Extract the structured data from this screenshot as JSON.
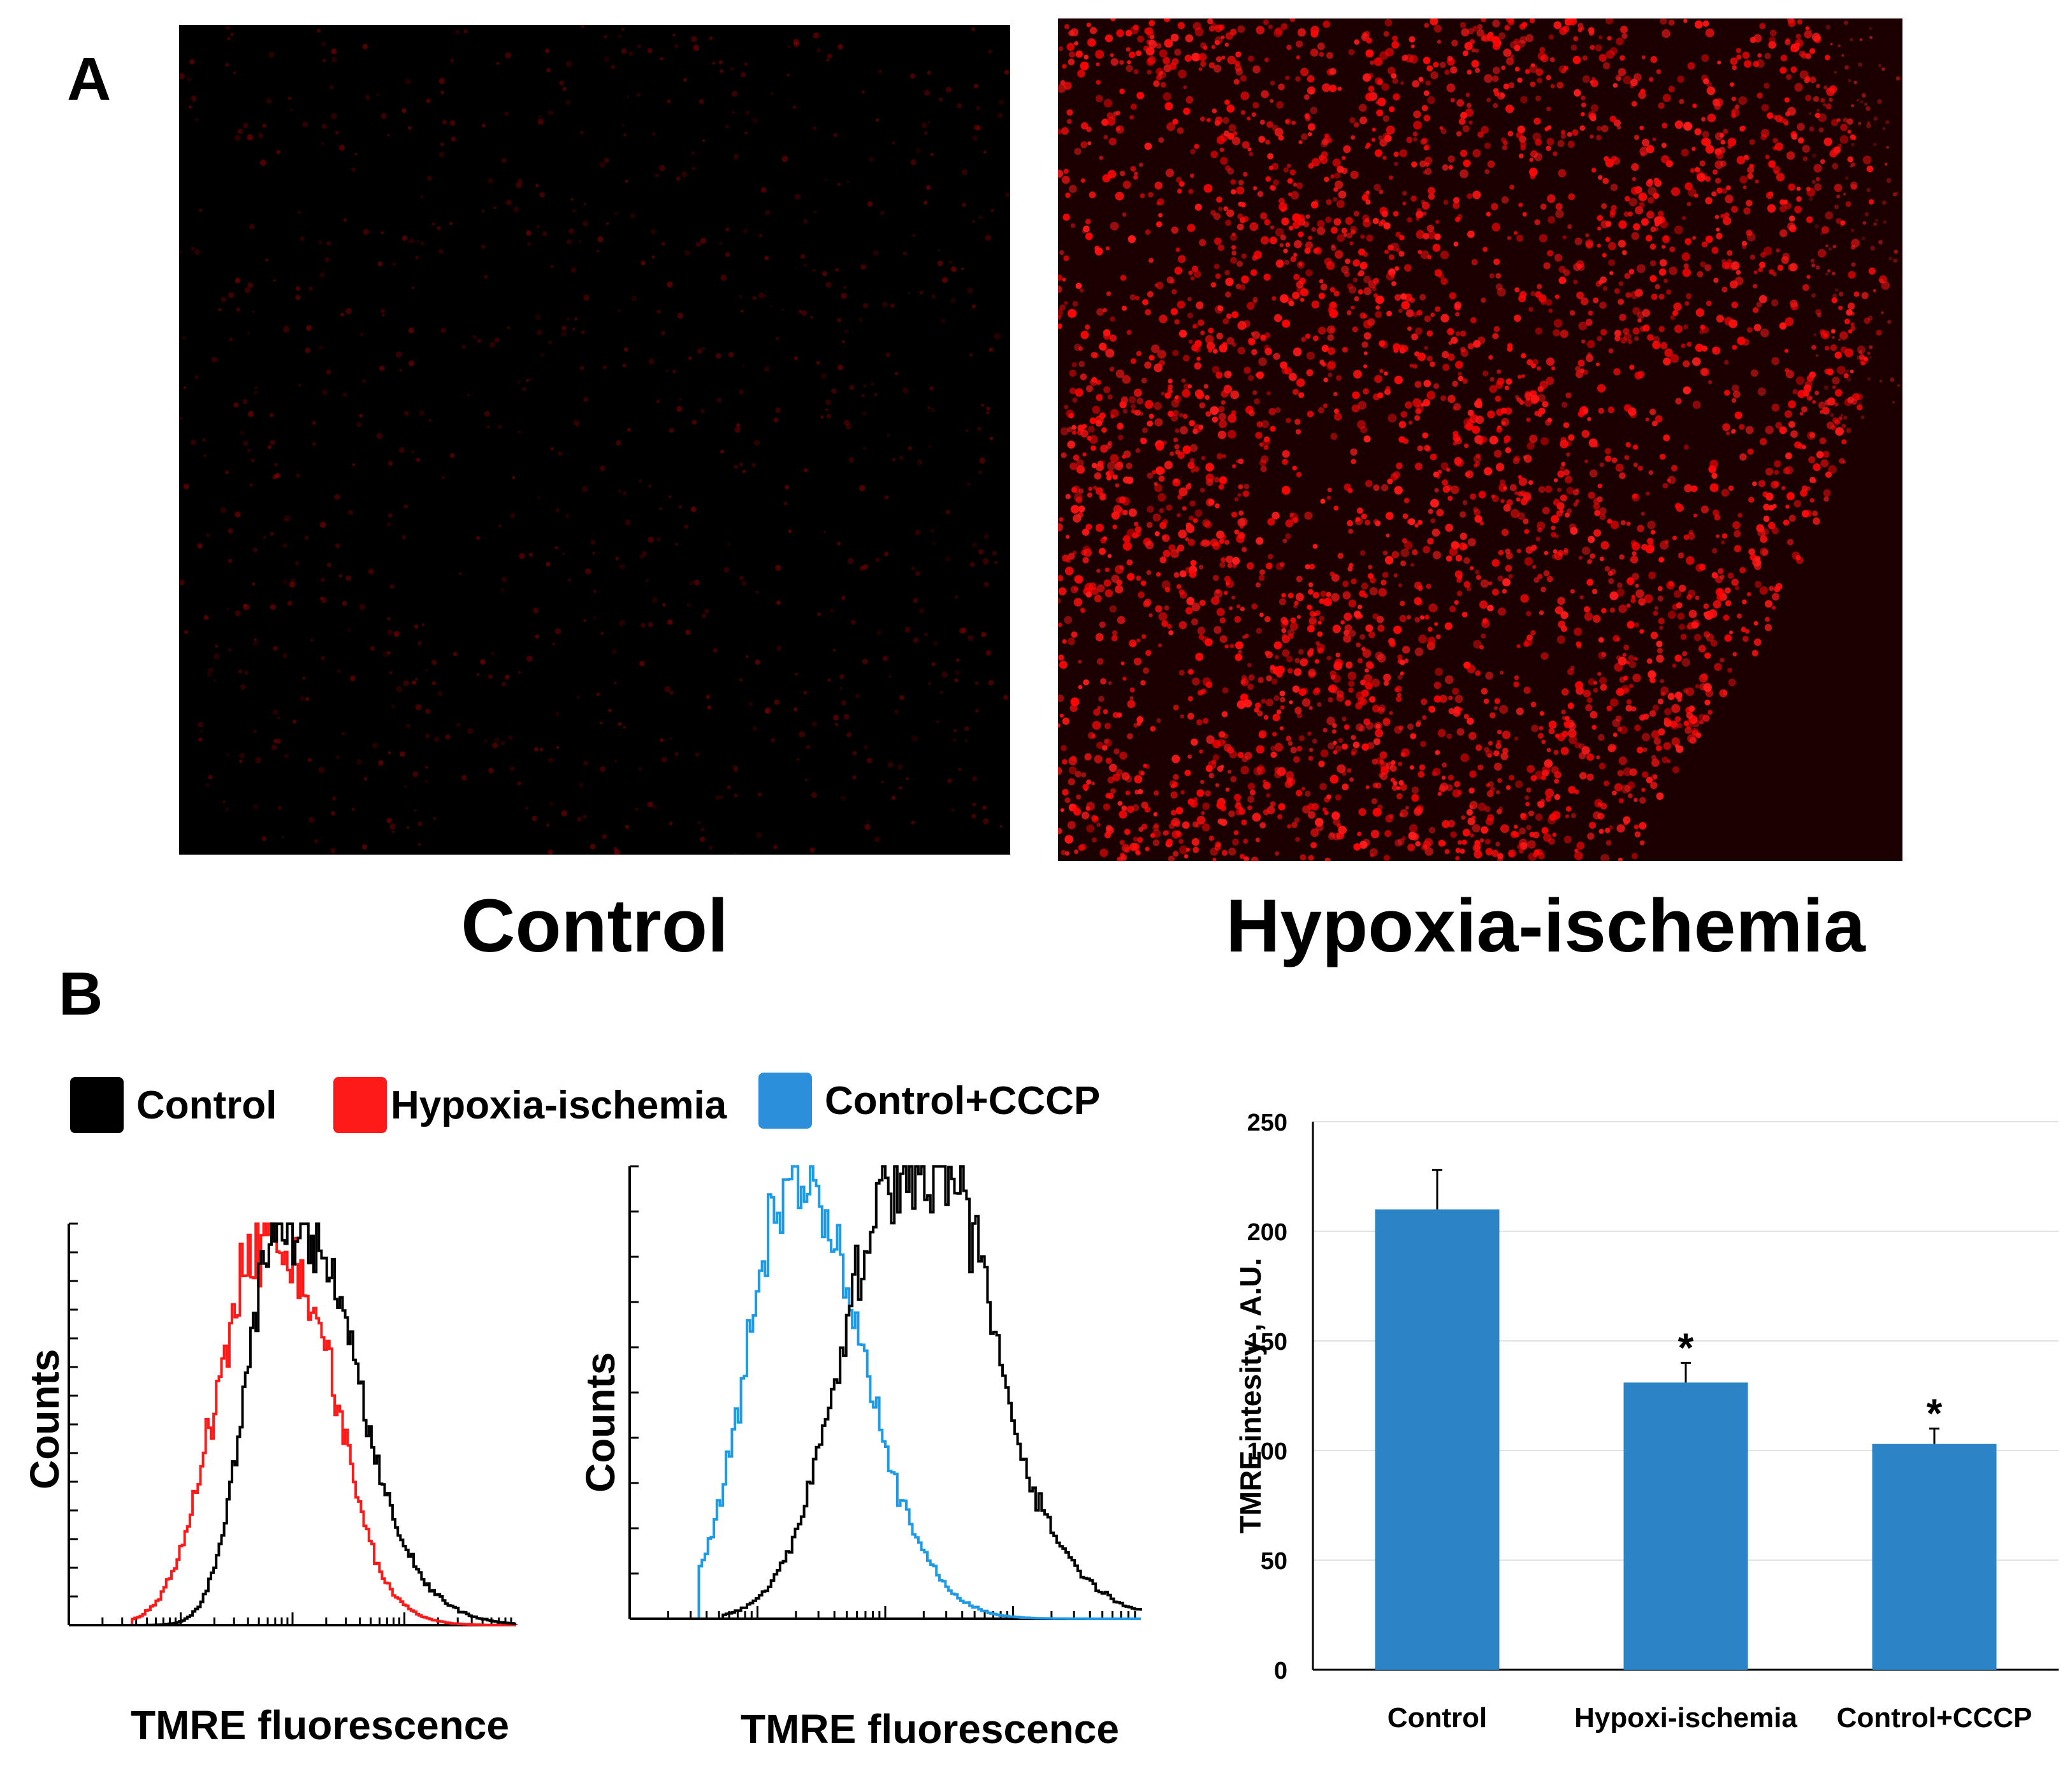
{
  "panels": {
    "a_label": "A",
    "b_label": "B"
  },
  "microscopy": {
    "left_caption": "Control",
    "right_caption": "Hypoxia-ischemia"
  },
  "histogram_legend": [
    {
      "label": "Control",
      "color": "#000000"
    },
    {
      "label": "Hypoxia-ischemia",
      "color": "#ff1a1a"
    },
    {
      "label": "Control+CCCP",
      "color": "#2b8fdb"
    }
  ],
  "histograms": [
    {
      "xlabel": "TMRE  fluorescence",
      "ylabel": "Counts",
      "series": [
        "Hypoxia-ischemia",
        "Control"
      ]
    },
    {
      "xlabel": "TMRE  fluorescence",
      "ylabel": "Counts",
      "series": [
        "Control+CCCP",
        "Control"
      ]
    }
  ],
  "chart_data": {
    "type": "bar",
    "categories": [
      "Control",
      "Hypoxi-ischemia",
      "Control+CCCP"
    ],
    "values": [
      210,
      131,
      103
    ],
    "errors": [
      18,
      9,
      7
    ],
    "significance": [
      "",
      "*",
      "*"
    ],
    "ylabel": "TMRE intesity , A.U.",
    "xlabel": "",
    "ylim": [
      0,
      250
    ],
    "yticks": [
      0,
      50,
      100,
      150,
      200,
      250
    ],
    "grid": true,
    "bar_color": "#2a84c6"
  }
}
